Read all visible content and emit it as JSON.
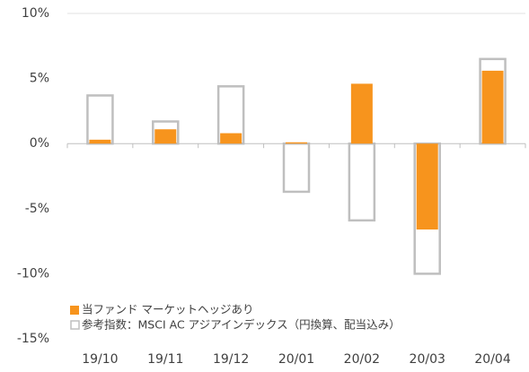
{
  "chart_data": {
    "type": "bar",
    "categories": [
      "19/10",
      "19/11",
      "19/12",
      "20/01",
      "20/02",
      "20/03",
      "20/04"
    ],
    "series": [
      {
        "name": "当ファンド マーケットヘッジあり",
        "color": "#f7941d",
        "style": "filled",
        "values": [
          0.3,
          1.1,
          0.8,
          0.1,
          4.6,
          -6.6,
          5.6
        ]
      },
      {
        "name": "参考指数：MSCI AC アジアインデックス（円換算、配当込み）",
        "color": "#bfbfbf",
        "style": "outline",
        "values": [
          3.7,
          1.7,
          4.4,
          -3.7,
          -5.9,
          -10.0,
          6.5
        ]
      }
    ],
    "ylim": [
      -15,
      10
    ],
    "yticks": [
      {
        "value": -15,
        "label": "-15%"
      },
      {
        "value": -10,
        "label": "-10%"
      },
      {
        "value": -5,
        "label": "-5%"
      },
      {
        "value": 0,
        "label": "0%"
      },
      {
        "value": 5,
        "label": "5%"
      },
      {
        "value": 10,
        "label": "10%"
      }
    ],
    "legend": "lower left"
  }
}
